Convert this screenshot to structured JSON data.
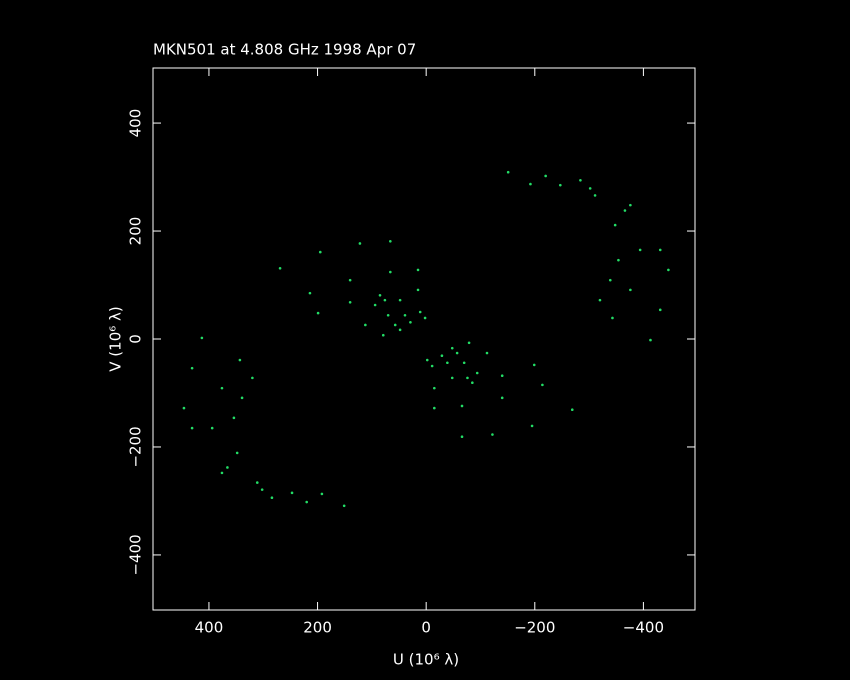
{
  "chart_data": {
    "type": "scatter",
    "title": "MKN501 at 4.808 GHz 1998 Apr 07",
    "x_label": "U (10⁶ λ)",
    "y_label": "V (10⁶ λ)",
    "color": "#22dd66",
    "xlim": [
      503,
      -495
    ],
    "ylim": [
      -502,
      502
    ],
    "xticks": [
      400,
      200,
      0,
      {
        "value": -200,
        "label": "−200"
      },
      {
        "value": -400,
        "label": "−400"
      }
    ],
    "yticks": [
      {
        "value": -400,
        "label": "−400"
      },
      {
        "value": -200,
        "label": "−200"
      },
      0,
      200,
      400
    ],
    "x": [
      -151,
      -220,
      -284,
      -376,
      -431,
      -446,
      -431,
      -413,
      -192,
      -302,
      -366,
      -394,
      -376,
      -343,
      -247,
      -311,
      -348,
      -354,
      -339,
      -320,
      269,
      195,
      122,
      66,
      214,
      140,
      66,
      15,
      199,
      140,
      85,
      15,
      112,
      94,
      76,
      79,
      70,
      48,
      57,
      39,
      11,
      48,
      29,
      2,
      151,
      220,
      284,
      376,
      431,
      446,
      431,
      413,
      192,
      302,
      366,
      394,
      376,
      343,
      247,
      311,
      348,
      354,
      339,
      320,
      -269,
      -195,
      -122,
      -66,
      -214,
      -140,
      -66,
      -15,
      -199,
      -140,
      -85,
      -15,
      -112,
      -94,
      -76,
      -79,
      -70,
      -48,
      -57,
      -39,
      -11,
      -48,
      -29,
      -2
    ],
    "y": [
      309,
      302,
      294,
      248,
      165,
      128,
      54,
      -2,
      287,
      279,
      238,
      165,
      91,
      39,
      285,
      266,
      211,
      146,
      109,
      72,
      131,
      161,
      177,
      181,
      85,
      109,
      124,
      128,
      48,
      68,
      81,
      91,
      26,
      63,
      72,
      7,
      44,
      72,
      26,
      44,
      50,
      17,
      31,
      39,
      -309,
      -302,
      -294,
      -248,
      -165,
      -128,
      -54,
      2,
      -287,
      -279,
      -238,
      -165,
      -91,
      -39,
      -285,
      -266,
      -211,
      -146,
      -109,
      -72,
      -131,
      -161,
      -177,
      -181,
      -85,
      -109,
      -124,
      -128,
      -48,
      -68,
      -81,
      -91,
      -26,
      -63,
      -72,
      -7,
      -44,
      -72,
      -26,
      -44,
      -50,
      -17,
      -31,
      -39
    ]
  }
}
